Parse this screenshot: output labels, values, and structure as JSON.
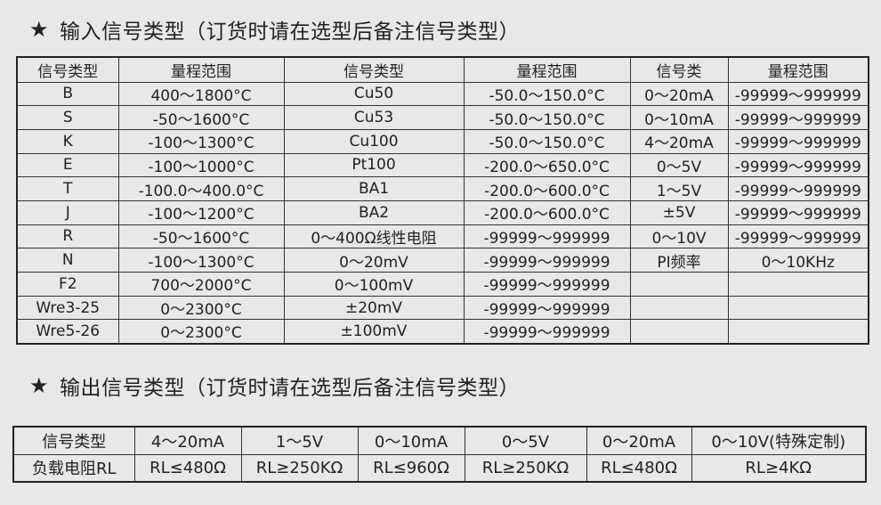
{
  "input_section": {
    "star": "★",
    "title": "输入信号类型（订货时请在选型后备注信号类型）",
    "headers": [
      "信号类型",
      "量程范围",
      "信号类型",
      "量程范围",
      "信号类",
      "量程范围"
    ],
    "rows": [
      [
        "B",
        "400～1800°C",
        "Cu50",
        "-50.0～150.0°C",
        "0～20mA",
        "-99999～999999"
      ],
      [
        "S",
        "-50～1600°C",
        "Cu53",
        "-50.0～150.0°C",
        "0～10mA",
        "-99999～999999"
      ],
      [
        "K",
        "-100～1300°C",
        "Cu100",
        "-50.0～150.0°C",
        "4～20mA",
        "-99999～999999"
      ],
      [
        "E",
        "-100～1000°C",
        "Pt100",
        "-200.0～650.0°C",
        "0～5V",
        "-99999～999999"
      ],
      [
        "T",
        "-100.0～400.0°C",
        "BA1",
        "-200.0～600.0°C",
        "1～5V",
        "-99999～999999"
      ],
      [
        "J",
        "-100～1200°C",
        "BA2",
        "-200.0～600.0°C",
        "±5V",
        "-99999～999999"
      ],
      [
        "R",
        "-50～1600°C",
        "0～400Ω线性电阻",
        "-99999～999999",
        "0～10V",
        "-99999～999999"
      ],
      [
        "N",
        "-100～1300°C",
        "0～20mV",
        "-99999～999999",
        "PI频率",
        "0～10KHz"
      ],
      [
        "F2",
        "700～2000°C",
        "0～100mV",
        "-99999～999999",
        "",
        ""
      ],
      [
        "Wre3-25",
        "0～2300°C",
        "±20mV",
        "-99999～999999",
        "",
        ""
      ],
      [
        "Wre5-26",
        "0～2300°C",
        "±100mV",
        "-99999～999999",
        "",
        ""
      ]
    ]
  },
  "output_section": {
    "star": "★",
    "title": "输出信号类型（订货时请在选型后备注信号类型）",
    "row1": [
      "信号类型",
      "4～20mA",
      "1～5V",
      "0～10mA",
      "0～5V",
      "0～20mA",
      "0～10V(特殊定制)"
    ],
    "row2": [
      "负载电阻RL",
      "RL≤480Ω",
      "RL≥250KΩ",
      "RL≤960Ω",
      "RL≥250KΩ",
      "RL≤480Ω",
      "RL≥4KΩ"
    ]
  }
}
